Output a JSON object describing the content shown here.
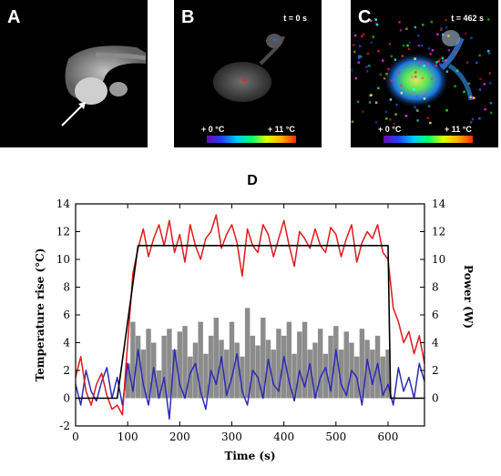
{
  "panels": [
    {
      "letter": "A",
      "time": ""
    },
    {
      "letter": "B",
      "time": "t = 0 s",
      "cbar_min": "+ 0 °C",
      "cbar_max": "+ 11 °C"
    },
    {
      "letter": "C",
      "time": "t = 462 s",
      "cbar_min": "+ 0 °C",
      "cbar_max": "+ 11 °C"
    }
  ],
  "chart_data": {
    "type": "line",
    "panel_letter": "D",
    "xlabel": "Time (s)",
    "ylabel_left": "Temperature rise (°C)",
    "ylabel_right": "Power (W)",
    "xlim": [
      0,
      670
    ],
    "ylim": [
      -2,
      14
    ],
    "xticks": [
      0,
      100,
      200,
      300,
      400,
      500,
      600
    ],
    "yticks": [
      -2,
      0,
      2,
      4,
      6,
      8,
      10,
      12,
      14
    ],
    "yticks_right": [
      0,
      2,
      4,
      6,
      8,
      10,
      12,
      14
    ],
    "series": [
      {
        "name": "",
        "role": "target",
        "color": "#000000",
        "x": [
          0,
          80,
          120,
          600,
          605,
          670
        ],
        "y": [
          0,
          0,
          11,
          11,
          0,
          0
        ]
      },
      {
        "name": "",
        "role": "measured-temperature",
        "color": "#e0191b",
        "x": [
          0,
          10,
          20,
          30,
          40,
          50,
          60,
          70,
          80,
          90,
          100,
          110,
          120,
          130,
          140,
          150,
          160,
          170,
          180,
          190,
          200,
          210,
          220,
          230,
          240,
          250,
          260,
          270,
          280,
          290,
          300,
          310,
          320,
          330,
          340,
          350,
          360,
          370,
          380,
          390,
          400,
          410,
          420,
          430,
          440,
          450,
          460,
          470,
          480,
          490,
          500,
          510,
          520,
          530,
          540,
          550,
          560,
          570,
          580,
          590,
          600,
          610,
          620,
          630,
          640,
          650,
          660,
          670
        ],
        "y": [
          1.5,
          3.0,
          0.5,
          -0.5,
          1.0,
          1.8,
          0.2,
          -0.8,
          -0.5,
          -1.2,
          4.0,
          9.0,
          10.8,
          12.2,
          10.2,
          11.5,
          12.5,
          11.0,
          12.8,
          10.5,
          11.8,
          9.8,
          12.5,
          11.0,
          10.0,
          11.5,
          12.0,
          13.2,
          10.8,
          11.8,
          12.5,
          11.2,
          8.8,
          12.2,
          11.0,
          10.5,
          12.5,
          11.8,
          10.2,
          11.5,
          12.8,
          11.0,
          9.5,
          12.0,
          11.5,
          10.8,
          12.2,
          11.0,
          10.5,
          12.3,
          11.8,
          10.2,
          11.5,
          12.5,
          9.8,
          11.2,
          12.0,
          11.5,
          12.5,
          10.5,
          10.0,
          6.5,
          5.5,
          4.0,
          4.8,
          3.2,
          4.5,
          2.5
        ]
      },
      {
        "name": "",
        "role": "reference-temperature",
        "color": "#2b2bb5",
        "x": [
          0,
          10,
          20,
          30,
          40,
          50,
          60,
          70,
          80,
          90,
          100,
          110,
          120,
          130,
          140,
          150,
          160,
          170,
          180,
          190,
          200,
          210,
          220,
          230,
          240,
          250,
          260,
          270,
          280,
          290,
          300,
          310,
          320,
          330,
          340,
          350,
          360,
          370,
          380,
          390,
          400,
          410,
          420,
          430,
          440,
          450,
          460,
          470,
          480,
          490,
          500,
          510,
          520,
          530,
          540,
          550,
          560,
          570,
          580,
          590,
          600,
          610,
          620,
          630,
          640,
          650,
          660,
          670
        ],
        "y": [
          1.0,
          -0.5,
          2.0,
          0.5,
          -0.2,
          1.2,
          2.2,
          0.0,
          1.5,
          -0.5,
          2.5,
          0.5,
          3.5,
          1.0,
          -0.5,
          2.2,
          0.0,
          1.5,
          -1.5,
          3.5,
          1.0,
          0.0,
          1.8,
          2.5,
          0.5,
          -0.8,
          2.0,
          1.0,
          3.0,
          0.2,
          1.5,
          3.2,
          0.5,
          -0.5,
          2.0,
          1.5,
          0.0,
          2.8,
          1.0,
          0.5,
          3.0,
          1.2,
          -0.2,
          2.0,
          0.8,
          2.5,
          0.0,
          1.5,
          2.2,
          0.5,
          3.5,
          1.0,
          0.2,
          2.0,
          1.5,
          -0.5,
          2.8,
          1.0,
          2.5,
          0.2,
          1.0,
          -0.5,
          2.2,
          0.5,
          1.5,
          0.0,
          2.5,
          1.2
        ]
      },
      {
        "name": "",
        "role": "power",
        "color": "#8c8c8c",
        "axis": "right",
        "x": [
          80,
          90,
          100,
          110,
          120,
          130,
          140,
          150,
          160,
          170,
          180,
          190,
          200,
          210,
          220,
          230,
          240,
          250,
          260,
          270,
          280,
          290,
          300,
          310,
          320,
          330,
          340,
          350,
          360,
          370,
          380,
          390,
          400,
          410,
          420,
          430,
          440,
          450,
          460,
          470,
          480,
          490,
          500,
          510,
          520,
          530,
          540,
          550,
          560,
          570,
          580,
          590,
          600
        ],
        "y": [
          0,
          0,
          2.5,
          5.5,
          4.5,
          3.5,
          5.0,
          4.0,
          2.0,
          4.5,
          5.0,
          3.5,
          4.8,
          5.2,
          3.0,
          4.0,
          5.5,
          3.2,
          4.5,
          5.8,
          4.2,
          3.5,
          5.5,
          4.0,
          3.0,
          6.5,
          4.5,
          3.8,
          5.8,
          4.2,
          3.5,
          5.0,
          4.5,
          5.5,
          3.2,
          4.8,
          5.5,
          3.5,
          4.0,
          5.0,
          3.2,
          4.5,
          5.2,
          3.5,
          4.8,
          4.0,
          3.0,
          5.0,
          4.2,
          3.5,
          4.5,
          3.0,
          3.5
        ]
      }
    ]
  }
}
